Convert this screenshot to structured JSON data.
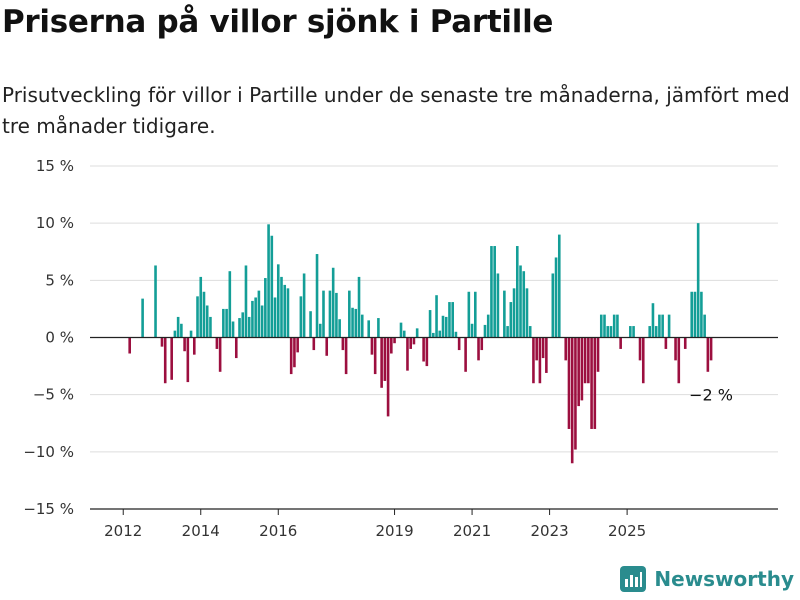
{
  "title": "Priserna på villor sjönk i Partille",
  "subtitle": "Prisutveckling för villor i Partille under de senaste tre månaderna, jämfört med tre månader tidigare.",
  "brand": "Newsworthy",
  "colors": {
    "positive": "#139e97",
    "negative": "#9c0f3f",
    "grid": "#dddddd",
    "axis": "#222222"
  },
  "chart_data": {
    "type": "bar",
    "title": "Priserna på villor sjönk i Partille",
    "unit": "%",
    "y_ticks": [
      15,
      10,
      5,
      0,
      -5,
      -10,
      -15
    ],
    "y_tick_labels": [
      "15 %",
      "10 %",
      "5 %",
      "0 %",
      "−5 %",
      "−10 %",
      "−15 %"
    ],
    "ylim": [
      -15,
      15
    ],
    "x_start": "2011-12",
    "x_ticks": [
      2012,
      2014,
      2016,
      2019,
      2021,
      2023,
      2025
    ],
    "annotation": "−2 %",
    "values": [
      0,
      0,
      0,
      -1.4,
      0,
      0,
      0,
      3.4,
      0,
      0,
      0,
      6.3,
      0,
      -0.8,
      -4,
      0,
      -3.7,
      0.6,
      1.8,
      1.2,
      -1.2,
      -3.9,
      0.6,
      -1.5,
      3.6,
      5.3,
      4,
      2.8,
      1.8,
      0,
      -1,
      -3,
      2.5,
      2.5,
      5.8,
      1.4,
      -1.8,
      1.7,
      2.2,
      6.3,
      1.8,
      3.2,
      3.5,
      4.1,
      2.8,
      5.2,
      9.9,
      8.9,
      3.5,
      6.4,
      5.3,
      4.6,
      4.3,
      -3.2,
      -2.6,
      -1.3,
      3.6,
      5.6,
      0,
      2.3,
      -1.1,
      7.3,
      1.2,
      4.1,
      -1.6,
      4.1,
      6.1,
      3.9,
      1.6,
      -1.1,
      -3.2,
      4.1,
      2.6,
      2.5,
      5.3,
      2,
      0,
      1.5,
      -1.5,
      -3.2,
      1.7,
      -4.4,
      -3.8,
      -6.9,
      -1.4,
      -0.5,
      0,
      1.3,
      0.6,
      -2.9,
      -1,
      -0.6,
      0.8,
      0,
      -2.1,
      -2.5,
      2.4,
      0.4,
      3.7,
      0.6,
      1.9,
      1.8,
      3.1,
      3.1,
      0.5,
      -1.1,
      0,
      -3,
      4,
      1.2,
      4,
      -2,
      -1.1,
      1.1,
      2,
      8,
      8,
      5.6,
      0,
      4.1,
      1,
      3.1,
      4.3,
      8,
      6.3,
      5.8,
      4.3,
      1,
      -4,
      -2,
      -4,
      -1.8,
      -3.1,
      0,
      5.6,
      7,
      9,
      0,
      -2,
      -8,
      -11,
      -9.8,
      -6,
      -5.5,
      -4,
      -4,
      -8,
      -8,
      -3,
      2,
      2,
      1,
      1,
      2,
      2,
      -1,
      0,
      0,
      1,
      1,
      0,
      -2,
      -4,
      0,
      1,
      3,
      1,
      2,
      2,
      -1,
      2,
      0,
      -2,
      -4,
      0,
      -1,
      0,
      4,
      4,
      10,
      4,
      2,
      -3,
      -2
    ]
  }
}
